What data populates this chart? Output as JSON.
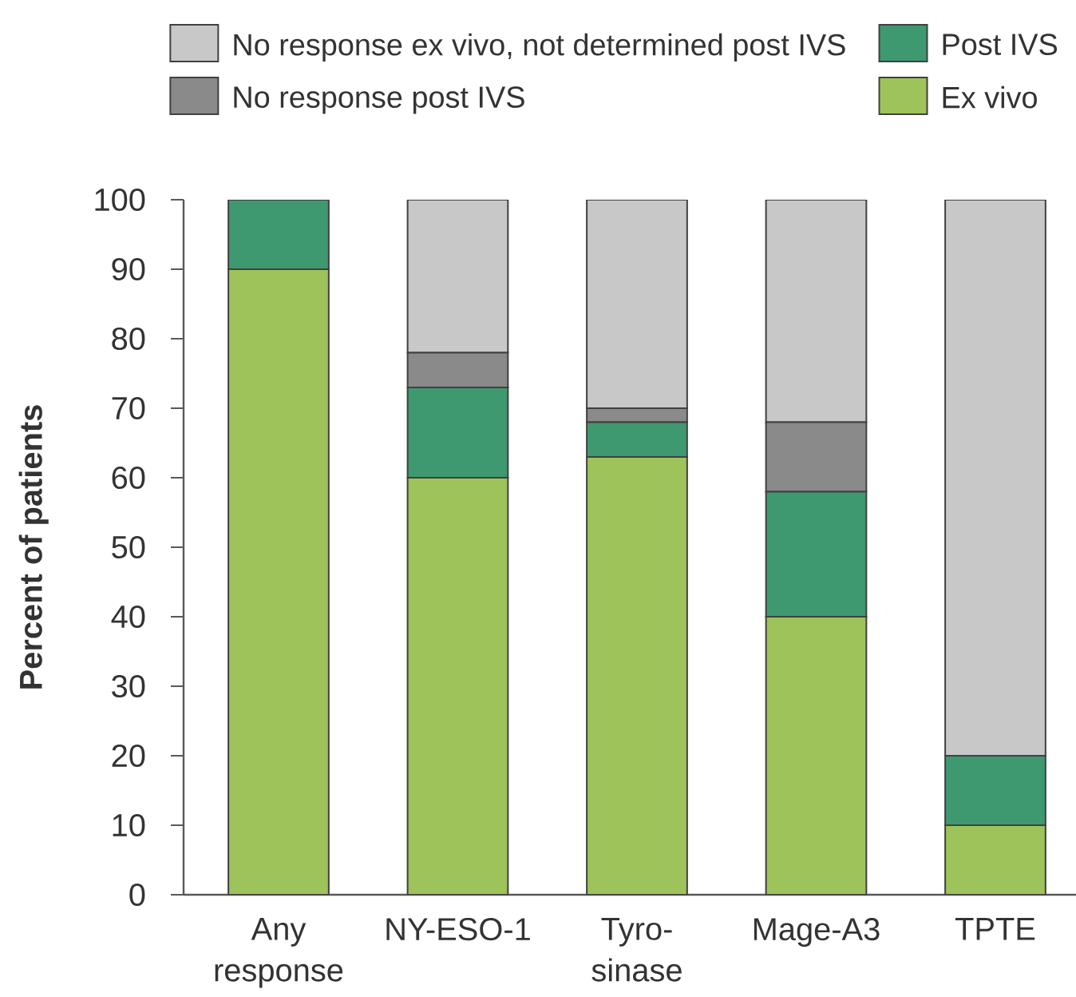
{
  "chart_data": {
    "type": "bar",
    "stacked": true,
    "ylabel": "Percent of patients",
    "categories": [
      "Any response",
      "NY-ESO-1",
      "Tyro-sinase",
      "Mage-A3",
      "TPTE"
    ],
    "series": [
      {
        "name": "Ex vivo",
        "color": "#9dc35a",
        "values": [
          90,
          60,
          63,
          40,
          10
        ]
      },
      {
        "name": "Post IVS",
        "color": "#3e9970",
        "values": [
          10,
          13,
          5,
          18,
          10
        ]
      },
      {
        "name": "No response post IVS",
        "color": "#8a8a8a",
        "values": [
          0,
          5,
          2,
          10,
          0
        ]
      },
      {
        "name": "No response ex vivo, not determined post IVS",
        "color": "#c8c8c8",
        "values": [
          0,
          22,
          30,
          32,
          80
        ]
      }
    ],
    "ylim": [
      0,
      100
    ],
    "yticks": [
      0,
      10,
      20,
      30,
      40,
      50,
      60,
      70,
      80,
      90,
      100
    ],
    "legend": "top"
  }
}
